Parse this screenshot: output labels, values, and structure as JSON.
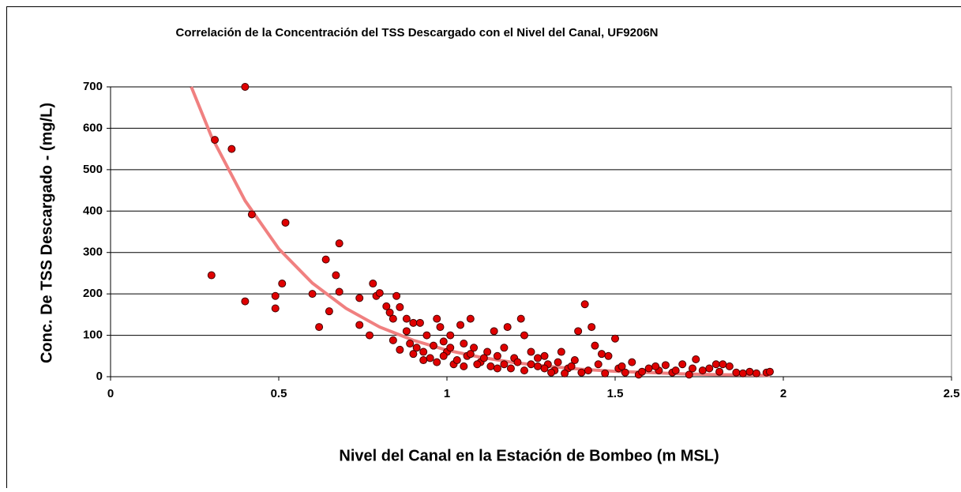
{
  "chart_data": {
    "type": "scatter",
    "title": "Correlación de la Concentración del TSS Descargado con el Nivel del Canal, UF9206N",
    "x_label": "Nivel del Canal en la Estación de Bombeo (m MSL)",
    "y_label": "Conc. De TSS Descargado - (mg/L)",
    "xlim": [
      0,
      2.5
    ],
    "ylim": [
      0,
      700
    ],
    "xticks": [
      0,
      0.5,
      1,
      1.5,
      2,
      2.5
    ],
    "yticks": [
      0,
      100,
      200,
      300,
      400,
      500,
      600,
      700
    ],
    "grid": true,
    "series": [
      {
        "color": "#e00000",
        "x": [
          0.3,
          0.31,
          0.36,
          0.4,
          0.4,
          0.42,
          0.49,
          0.49,
          0.51,
          0.52,
          0.6,
          0.62,
          0.64,
          0.65,
          0.67,
          0.68,
          0.68,
          0.74,
          0.74,
          0.77,
          0.78,
          0.79,
          0.8,
          0.82,
          0.83,
          0.84,
          0.85,
          0.86,
          0.84,
          0.86,
          0.88,
          0.88,
          0.9,
          0.89,
          0.9,
          0.92,
          0.93,
          0.94,
          0.96,
          0.97,
          0.98,
          0.99,
          1.0,
          1.01,
          1.02,
          1.04,
          1.05,
          1.06,
          1.07,
          1.08,
          1.1,
          1.12,
          1.14,
          1.15,
          1.17,
          1.18,
          1.2,
          1.22,
          1.23,
          1.25,
          1.27,
          1.29,
          1.3,
          1.32,
          1.34,
          1.36,
          1.38,
          1.39,
          1.4,
          1.41,
          1.43,
          1.44,
          1.45,
          1.46,
          1.48,
          1.5,
          1.51,
          1.53,
          1.55,
          1.57,
          1.6,
          1.63,
          1.65,
          1.67,
          1.7,
          1.72,
          1.74,
          1.76,
          1.78,
          1.8,
          1.82,
          1.84,
          1.86,
          1.88,
          1.9,
          1.92,
          1.95,
          1.96,
          0.91,
          0.93,
          0.95,
          0.97,
          0.99,
          1.01,
          1.03,
          1.05,
          1.07,
          1.09,
          1.11,
          1.13,
          1.15,
          1.17,
          1.19,
          1.21,
          1.23,
          1.25,
          1.27,
          1.29,
          1.31,
          1.33,
          1.35,
          1.37,
          1.42,
          1.47,
          1.52,
          1.58,
          1.62,
          1.68,
          1.73,
          1.81
        ],
        "values": [
          245,
          572,
          550,
          700,
          182,
          392,
          165,
          195,
          225,
          372,
          200,
          120,
          283,
          158,
          245,
          322,
          205,
          190,
          125,
          100,
          225,
          195,
          202,
          170,
          155,
          140,
          195,
          168,
          88,
          65,
          140,
          110,
          130,
          80,
          55,
          130,
          40,
          100,
          75,
          140,
          120,
          85,
          60,
          100,
          30,
          125,
          80,
          50,
          140,
          70,
          35,
          60,
          110,
          20,
          70,
          120,
          45,
          140,
          100,
          60,
          25,
          50,
          30,
          15,
          60,
          20,
          40,
          110,
          10,
          175,
          120,
          75,
          30,
          55,
          50,
          92,
          20,
          10,
          35,
          5,
          20,
          15,
          28,
          10,
          30,
          5,
          42,
          15,
          20,
          30,
          30,
          25,
          10,
          8,
          12,
          8,
          10,
          12,
          70,
          60,
          45,
          35,
          50,
          70,
          40,
          25,
          55,
          30,
          45,
          25,
          50,
          30,
          20,
          35,
          15,
          30,
          45,
          20,
          10,
          35,
          8,
          25,
          15,
          8,
          25,
          12,
          25,
          15,
          20,
          12
        ]
      }
    ],
    "trendline": {
      "color": "#f08080",
      "x": [
        0.24,
        0.3,
        0.4,
        0.5,
        0.6,
        0.7,
        0.8,
        0.9,
        1.0,
        1.1,
        1.2,
        1.3,
        1.4,
        1.5,
        1.6,
        1.7,
        1.8,
        1.9,
        1.96
      ],
      "values": [
        700,
        580,
        425,
        309,
        226,
        165,
        120,
        88,
        64,
        47,
        34,
        25,
        18,
        13,
        10,
        7,
        5,
        4,
        3
      ]
    }
  }
}
